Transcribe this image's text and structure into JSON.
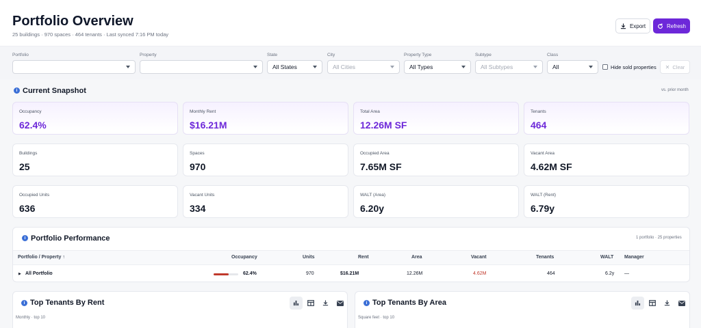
{
  "header": {
    "title": "Portfolio Overview",
    "subtitle": "25 buildings · 970 spaces · 464 tenants · Last synced 7:16 PM today",
    "export_label": "Export",
    "refresh_label": "Refresh"
  },
  "filters": {
    "portfolio": {
      "label": "Portfolio",
      "value": ""
    },
    "property": {
      "label": "Property",
      "value": ""
    },
    "state": {
      "label": "State",
      "value": "All States"
    },
    "city": {
      "label": "City",
      "value": "All Cities"
    },
    "property_type": {
      "label": "Property Type",
      "value": "All Types"
    },
    "subtype": {
      "label": "Subtype",
      "value": "All Subtypes"
    },
    "class": {
      "label": "Class",
      "value": "All"
    },
    "hide_sold_label": "Hide sold properties",
    "clear_label": "Clear"
  },
  "snapshot": {
    "title": "Current Snapshot",
    "compare": "vs. prior month",
    "cards": [
      {
        "label": "Occupancy",
        "value": "62.4%"
      },
      {
        "label": "Monthly Rent",
        "value": "$16.21M"
      },
      {
        "label": "Total Area",
        "value": "12.26M SF"
      },
      {
        "label": "Tenants",
        "value": "464"
      },
      {
        "label": "Buildings",
        "value": "25"
      },
      {
        "label": "Spaces",
        "value": "970"
      },
      {
        "label": "Occupied Area",
        "value": "7.65M SF"
      },
      {
        "label": "Vacant Area",
        "value": "4.62M SF"
      },
      {
        "label": "Occupied Units",
        "value": "636"
      },
      {
        "label": "Vacant Units",
        "value": "334"
      },
      {
        "label": "WALT (Area)",
        "value": "6.20y"
      },
      {
        "label": "WALT (Rent)",
        "value": "6.79y"
      }
    ]
  },
  "performance": {
    "title": "Portfolio Performance",
    "meta": "1 portfolio · 25 properties",
    "columns": {
      "name": "Portfolio / Property",
      "occupancy": "Occupancy",
      "units": "Units",
      "rent": "Rent",
      "area": "Area",
      "vacant": "Vacant",
      "tenants": "Tenants",
      "walt": "WALT",
      "manager": "Manager"
    },
    "row": {
      "name": "All Portfolio",
      "occupancy": "62.4%",
      "occupancy_fraction": 0.624,
      "units": "970",
      "rent": "$16.21M",
      "area": "12.26M",
      "vacant": "4.62M",
      "tenants": "464",
      "walt": "6.2y",
      "manager": "—"
    }
  },
  "panels": {
    "by_rent": {
      "title": "Top Tenants By Rent",
      "subtitle": "Monthly · top 10"
    },
    "by_area": {
      "title": "Top Tenants By Area",
      "subtitle": "Square feet · top 10"
    }
  },
  "colors": {
    "accent": "#6d28d9",
    "info": "#3b6fd6",
    "vacant": "#c0392b"
  }
}
